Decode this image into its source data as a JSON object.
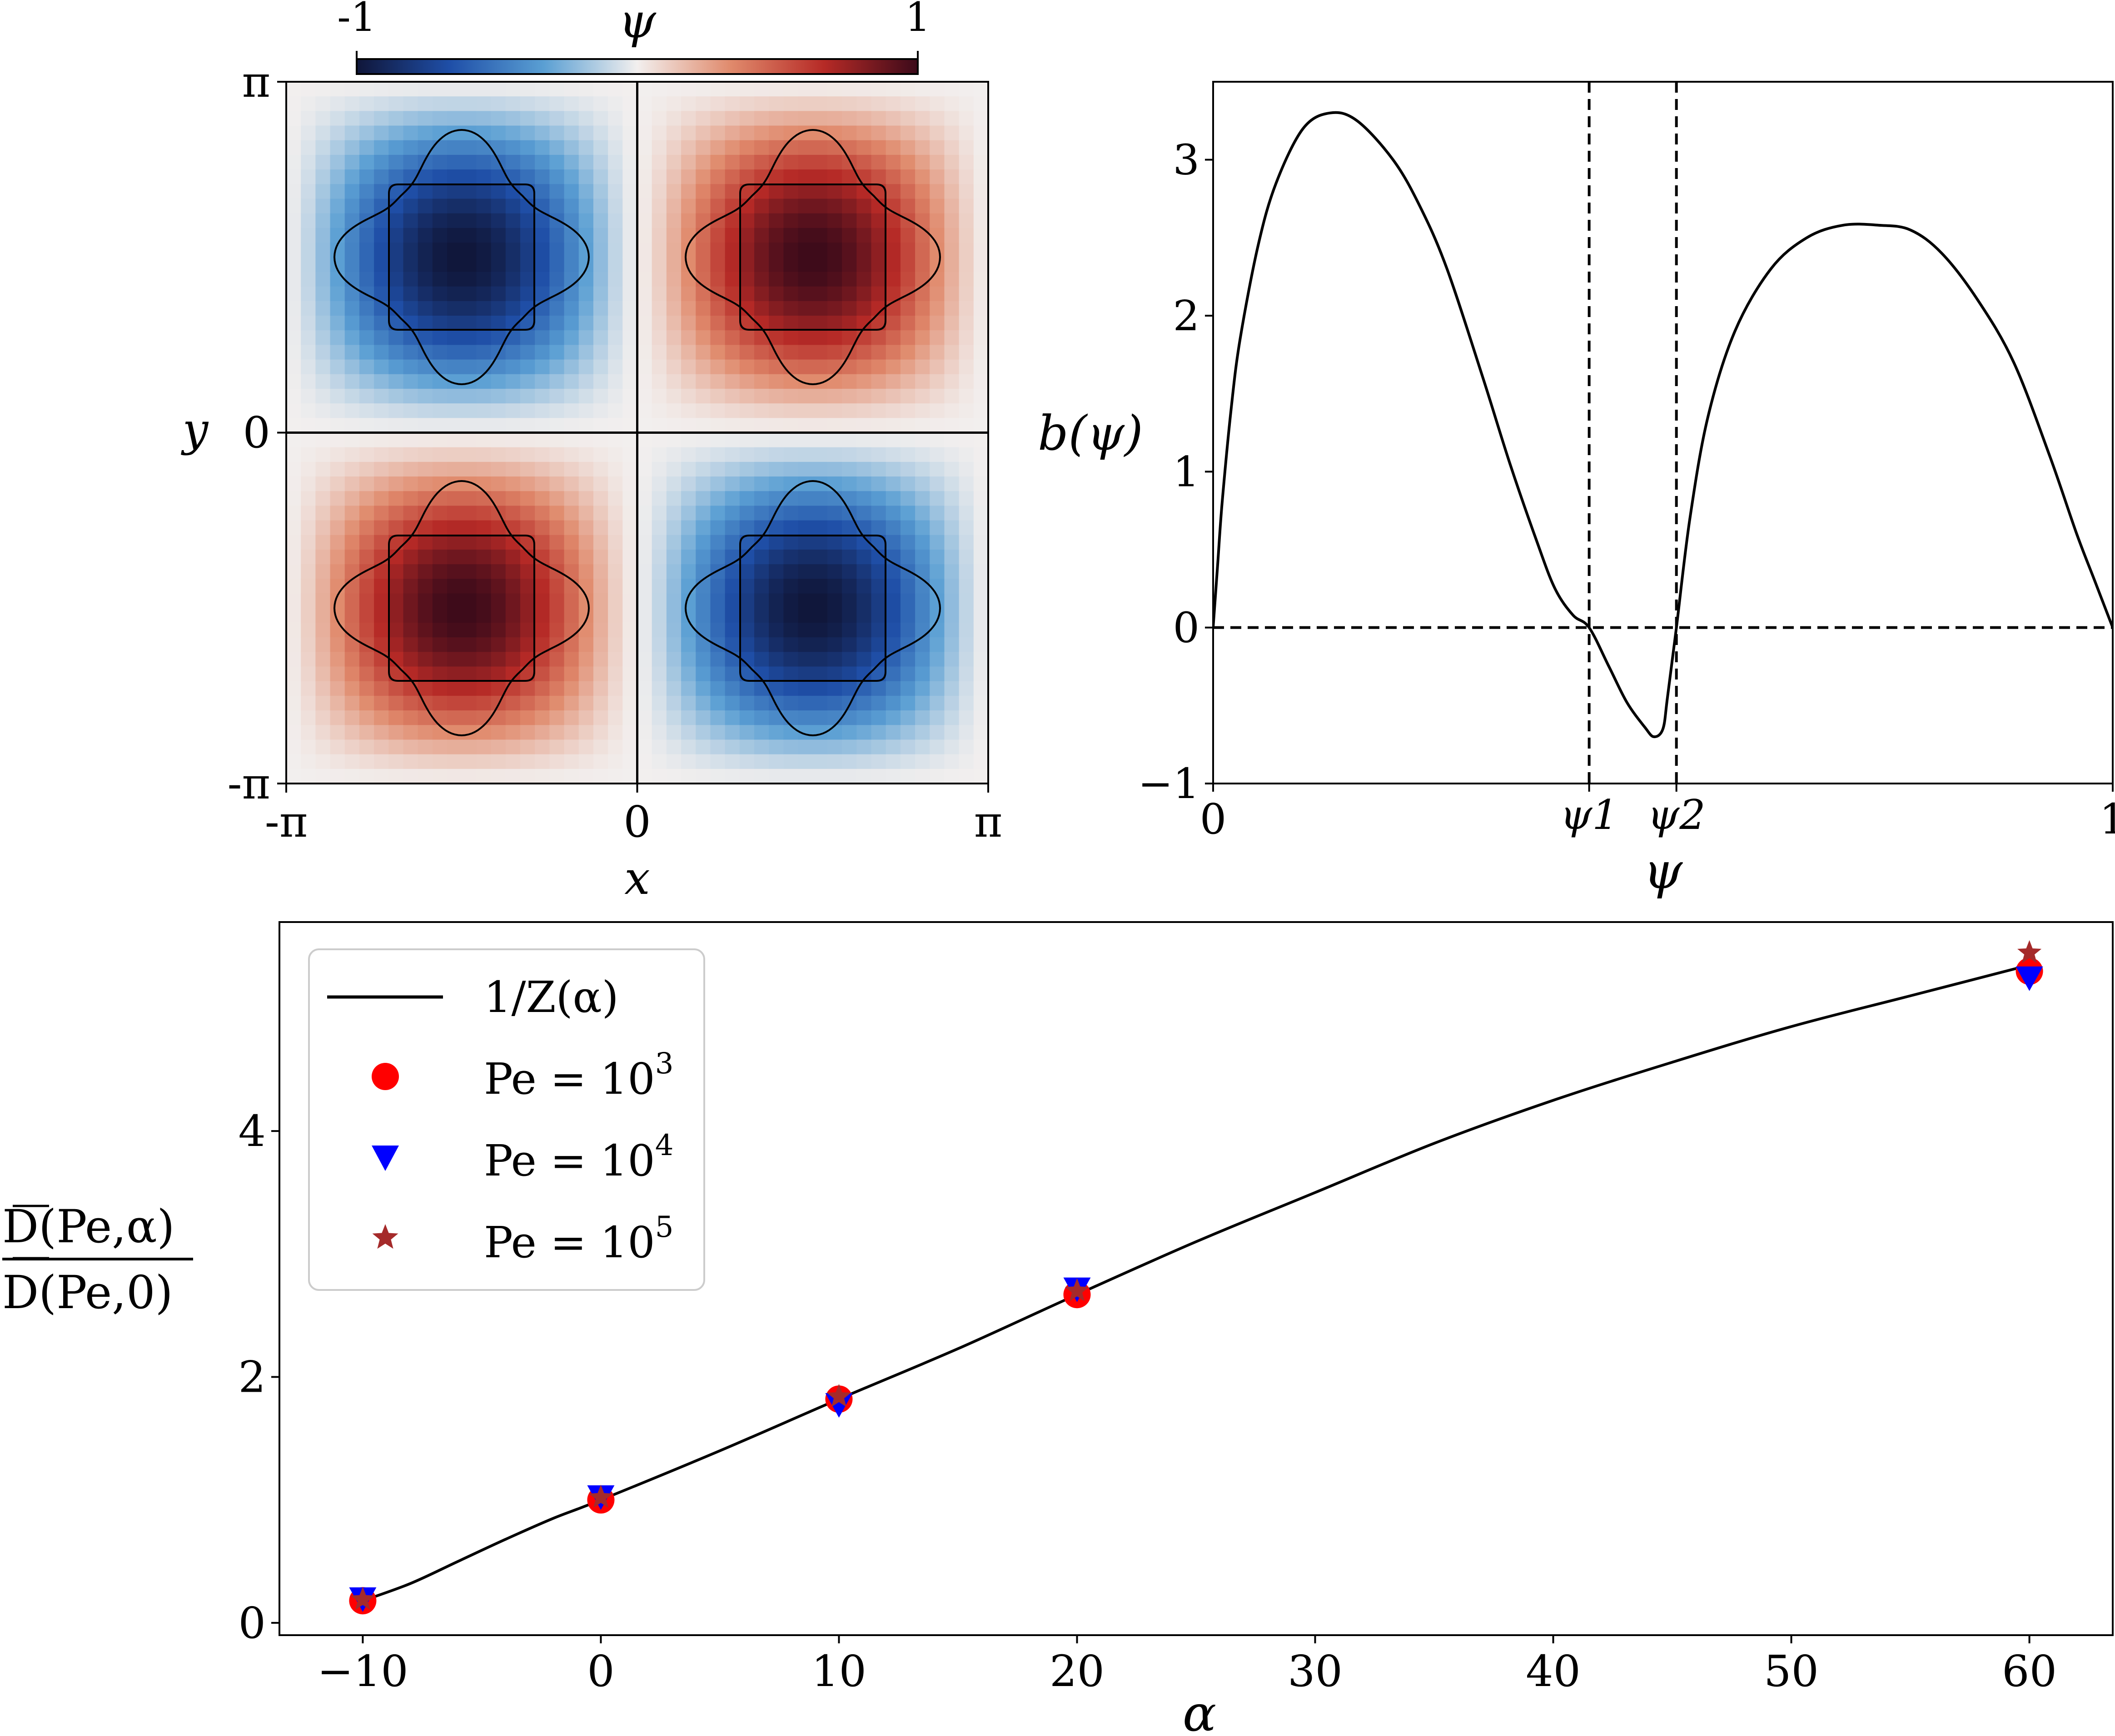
{
  "chart_data": [
    {
      "type": "heatmap",
      "title": "",
      "xlabel": "x",
      "ylabel": "y",
      "colorbar": {
        "label": "ψ",
        "min_label": "-1",
        "max_label": "1",
        "range": [
          -1,
          1
        ],
        "colors": [
          "#101639",
          "#1f4fa8",
          "#5a9fd3",
          "#f2efee",
          "#e08a6c",
          "#b62a26",
          "#3c0a1a"
        ]
      },
      "x_ticks": [
        "-π",
        "0",
        "π"
      ],
      "y_ticks": [
        "-π",
        "0",
        "π"
      ],
      "xlim": [
        -3.1416,
        3.1416
      ],
      "ylim": [
        -3.1416,
        3.1416
      ],
      "field": "psi = sin(x) * sin(y)",
      "cells": [
        {
          "quadrant": "top-left",
          "sign": -1
        },
        {
          "quadrant": "top-right",
          "sign": 1
        },
        {
          "quadrant": "bottom-left",
          "sign": 1
        },
        {
          "quadrant": "bottom-right",
          "sign": -1
        }
      ],
      "contour_levels": [
        0.3,
        0.65
      ]
    },
    {
      "type": "line",
      "title": "",
      "xlabel": "ψ",
      "ylabel": "b(ψ)",
      "xlim": [
        0,
        1
      ],
      "ylim": [
        -1,
        3.5
      ],
      "x_ticks": [
        0,
        1
      ],
      "x_tick_labels": [
        "0",
        "1"
      ],
      "y_ticks": [
        -1,
        0,
        1,
        2,
        3
      ],
      "y_tick_labels": [
        "−1",
        "0",
        "1",
        "2",
        "3"
      ],
      "psi1": 0.418,
      "psi2": 0.515,
      "psi1_label": "ψ1",
      "psi2_label": "ψ2",
      "series": [
        {
          "name": "b(ψ)",
          "x": [
            0.0,
            0.005,
            0.01,
            0.02,
            0.03,
            0.05,
            0.07,
            0.1,
            0.13,
            0.16,
            0.2,
            0.23,
            0.26,
            0.3,
            0.33,
            0.36,
            0.38,
            0.4,
            0.418,
            0.44,
            0.46,
            0.48,
            0.49,
            0.5,
            0.505,
            0.515,
            0.53,
            0.55,
            0.58,
            0.62,
            0.66,
            0.7,
            0.74,
            0.775,
            0.81,
            0.85,
            0.89,
            0.93,
            0.96,
            0.98,
            1.0
          ],
          "y": [
            0.0,
            0.4,
            0.8,
            1.4,
            1.85,
            2.45,
            2.85,
            3.2,
            3.3,
            3.25,
            3.0,
            2.7,
            2.3,
            1.6,
            1.05,
            0.55,
            0.25,
            0.08,
            0.0,
            -0.25,
            -0.48,
            -0.64,
            -0.7,
            -0.65,
            -0.45,
            0.0,
            0.7,
            1.35,
            1.9,
            2.3,
            2.5,
            2.58,
            2.58,
            2.55,
            2.4,
            2.1,
            1.7,
            1.1,
            0.6,
            0.3,
            0.0
          ]
        }
      ],
      "reference_lines": [
        "y = 0",
        "x = ψ1",
        "x = ψ2"
      ]
    },
    {
      "type": "line",
      "title": "",
      "xlabel": "α",
      "ylabel_num": "D(Pe,α)",
      "ylabel_den": "D(Pe,0)",
      "xlim": [
        -13.5,
        63.5
      ],
      "ylim": [
        -0.1,
        5.7
      ],
      "x_ticks": [
        -10,
        0,
        10,
        20,
        30,
        40,
        50,
        60
      ],
      "x_tick_labels": [
        "−10",
        "0",
        "10",
        "20",
        "30",
        "40",
        "50",
        "60"
      ],
      "y_ticks": [
        0,
        2,
        4
      ],
      "y_tick_labels": [
        "0",
        "2",
        "4"
      ],
      "legend_position": "top-left",
      "series": [
        {
          "name": "1/Z(α)",
          "kind": "line",
          "color": "#000000",
          "x": [
            -10,
            -8,
            -6,
            -4,
            -2,
            0,
            5,
            10,
            15,
            20,
            25,
            30,
            35,
            40,
            45,
            50,
            55,
            60
          ],
          "y": [
            0.18,
            0.32,
            0.5,
            0.68,
            0.85,
            1.0,
            1.4,
            1.82,
            2.23,
            2.67,
            3.1,
            3.5,
            3.9,
            4.25,
            4.56,
            4.85,
            5.1,
            5.35
          ]
        },
        {
          "name": "Pe = 10^3",
          "label": "Pe = 10",
          "exp": "3",
          "kind": "circle",
          "color": "#ff0000",
          "x": [
            -10,
            0,
            10,
            20,
            60
          ],
          "y": [
            0.18,
            1.0,
            1.82,
            2.67,
            5.3
          ]
        },
        {
          "name": "Pe = 10^4",
          "label": "Pe = 10",
          "exp": "4",
          "kind": "triangle",
          "color": "#0000ff",
          "x": [
            -10,
            0,
            10,
            20,
            60
          ],
          "y": [
            0.2,
            1.03,
            1.78,
            2.72,
            5.25
          ]
        },
        {
          "name": "Pe = 10^5",
          "label": "Pe = 10",
          "exp": "5",
          "kind": "star",
          "color": "#a52a2a",
          "x": [
            -10,
            0,
            10,
            20,
            60
          ],
          "y": [
            0.19,
            1.02,
            1.84,
            2.7,
            5.45
          ]
        }
      ]
    }
  ]
}
